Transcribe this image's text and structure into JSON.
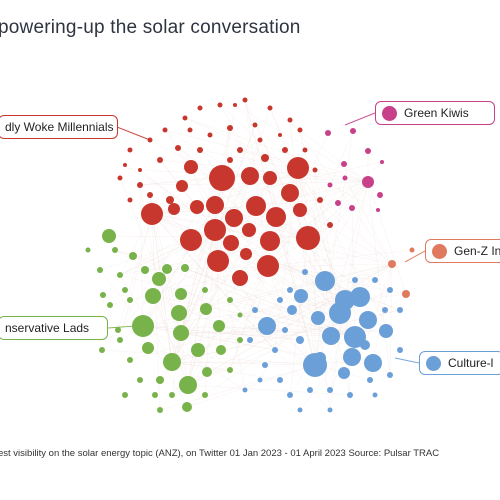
{
  "title": "powering-up the solar conversation",
  "footer": "est visibility on the solar energy topic (ANZ), on Twitter 01 Jan 2023 - 01 April 2023 Source: Pulsar TRAC",
  "colors": {
    "red": "#c8372d",
    "green": "#78b24a",
    "blue": "#6a9fd8",
    "magenta": "#c8408a",
    "orange": "#e07a5f",
    "edge": "#e9d7d2"
  },
  "communities": [
    {
      "id": "woke",
      "label": "dly Woke Millennials",
      "color": "#c8372d"
    },
    {
      "id": "green",
      "label": "Green Kiwis",
      "color": "#c8408a"
    },
    {
      "id": "genz",
      "label": "Gen-Z In",
      "color": "#e07a5f"
    },
    {
      "id": "lads",
      "label": "nservative Lads",
      "color": "#78b24a"
    },
    {
      "id": "culture",
      "label": "Culture-l",
      "color": "#6a9fd8"
    }
  ]
}
